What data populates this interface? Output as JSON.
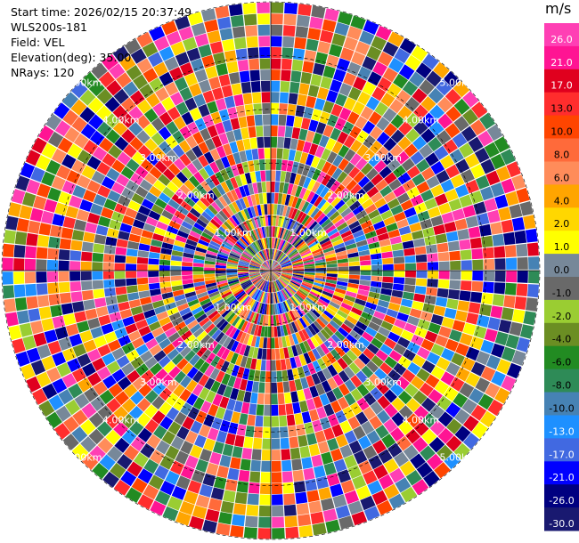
{
  "header": {
    "start_time": "Start time: 2026/02/15 20:37:49",
    "instrument": "WLS200s-181",
    "field": "Field: VEL",
    "elevation": "Elevation(deg): 35.00",
    "nrays": "NRays: 120"
  },
  "colorbar": {
    "unit": "m/s",
    "ticks": [
      "26.0",
      "21.0",
      "17.0",
      "13.0",
      "10.0",
      "8.0",
      "6.0",
      "4.0",
      "2.0",
      "1.0",
      "0.0",
      "-1.0",
      "-2.0",
      "-4.0",
      "-6.0",
      "-8.0",
      "-10.0",
      "-13.0",
      "-17.0",
      "-21.0",
      "-26.0",
      "-30.0"
    ],
    "colors": [
      "#ff3fb4",
      "#ff1493",
      "#e0001e",
      "#ff2d2d",
      "#ff4500",
      "#ff6a3a",
      "#ff8c5a",
      "#ffa500",
      "#ffd700",
      "#ffff00",
      "#778899",
      "#696969",
      "#9acd32",
      "#6b8e23",
      "#228b22",
      "#2e8b57",
      "#4682b4",
      "#1e90ff",
      "#4169e1",
      "#0000ff",
      "#000080",
      "#191970"
    ]
  },
  "chart_data": {
    "type": "heatmap",
    "projection": "polar (PPI)",
    "field": "VEL",
    "units": "m/s",
    "elevation_deg": 35.0,
    "n_rays": 120,
    "range_ring_labels": [
      "1.00km",
      "2.00km",
      "3.00km",
      "4.00km",
      "5.00km"
    ],
    "color_levels": [
      -30.0,
      -26.0,
      -21.0,
      -17.0,
      -13.0,
      -10.0,
      -8.0,
      -6.0,
      -4.0,
      -2.0,
      -1.0,
      0.0,
      1.0,
      2.0,
      4.0,
      6.0,
      8.0,
      10.0,
      13.0,
      17.0,
      21.0,
      26.0
    ],
    "n_gates": 24
  }
}
